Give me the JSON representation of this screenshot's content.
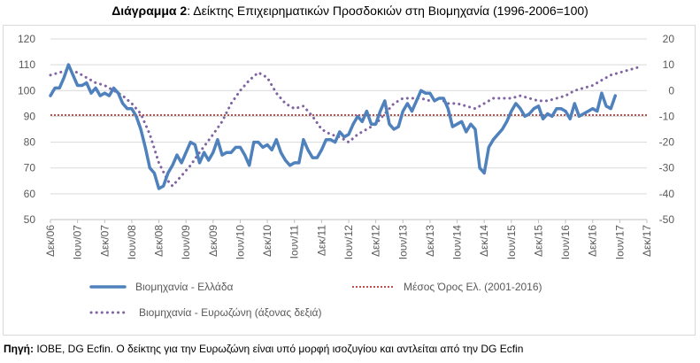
{
  "header": {
    "title_bold": "Διάγραμμα 2",
    "title_rest": ": Δείκτης Επιχειρηματικών Προσδοκιών στη Βιομηχανία (1996-2006=100)"
  },
  "footer": {
    "source_label": "Πηγή:",
    "source_text": " ΙΟΒΕ, DG Ecfin. Ο δείκτης για την Ευρωζώνη είναι υπό μορφή ισοζυγίου και αντλείται από την DG Ecfin"
  },
  "colors": {
    "greece": "#4f81bd",
    "eurozone": "#8064a2",
    "average": "#c0504d",
    "grid": "#d9d9d9"
  },
  "chart_data": {
    "type": "line",
    "title": "Δείκτης Επιχειρηματικών Προσδοκιών στη Βιομηχανία (1996-2006=100)",
    "grid": "horizontal",
    "legend_position": "bottom-left",
    "y_left": {
      "min": 50,
      "max": 120,
      "ticks": [
        "120",
        "110",
        "100",
        "90",
        "80",
        "70",
        "60",
        "50"
      ]
    },
    "y_right": {
      "min": -50,
      "max": 20,
      "ticks": [
        "20",
        "10",
        "0",
        "-10",
        "-20",
        "-30",
        "-40",
        "-50"
      ]
    },
    "x_range": [
      "2006-12",
      "2017-12"
    ],
    "x_ticks": [
      {
        "date": "2006-12",
        "label": "Δεκ/06"
      },
      {
        "date": "2007-06",
        "label": "Ιουν/07"
      },
      {
        "date": "2007-12",
        "label": "Δεκ/07"
      },
      {
        "date": "2008-06",
        "label": "Ιουν/08"
      },
      {
        "date": "2008-12",
        "label": "Δεκ/08"
      },
      {
        "date": "2009-06",
        "label": "Ιουν/09"
      },
      {
        "date": "2009-12",
        "label": "Δεκ/09"
      },
      {
        "date": "2010-06",
        "label": "Ιουν/10"
      },
      {
        "date": "2010-12",
        "label": "Δεκ/10"
      },
      {
        "date": "2011-06",
        "label": "Ιουν/11"
      },
      {
        "date": "2011-12",
        "label": "Δεκ/11"
      },
      {
        "date": "2012-06",
        "label": "Ιουν/12"
      },
      {
        "date": "2012-12",
        "label": "Δεκ/12"
      },
      {
        "date": "2013-06",
        "label": "Ιουν/13"
      },
      {
        "date": "2013-12",
        "label": "Δεκ/13"
      },
      {
        "date": "2014-06",
        "label": "Ιουν/14"
      },
      {
        "date": "2014-12",
        "label": "Δεκ/14"
      },
      {
        "date": "2015-06",
        "label": "Ιουν/15"
      },
      {
        "date": "2015-12",
        "label": "Δεκ/15"
      },
      {
        "date": "2016-06",
        "label": "Ιουν/16"
      },
      {
        "date": "2016-12",
        "label": "Δεκ/16"
      },
      {
        "date": "2017-06",
        "label": "Ιουν/17"
      },
      {
        "date": "2017-12",
        "label": "Δεκ/17"
      }
    ],
    "series": [
      {
        "name": "Βιομηχανία - Ελλάδα",
        "axis": "left",
        "style": "solid",
        "points": [
          [
            "2006-12",
            98
          ],
          [
            "2007-01",
            101
          ],
          [
            "2007-02",
            101
          ],
          [
            "2007-03",
            105
          ],
          [
            "2007-04",
            110
          ],
          [
            "2007-05",
            106
          ],
          [
            "2007-06",
            102
          ],
          [
            "2007-07",
            102
          ],
          [
            "2007-08",
            103
          ],
          [
            "2007-09",
            99
          ],
          [
            "2007-10",
            101
          ],
          [
            "2007-11",
            98
          ],
          [
            "2007-12",
            99
          ],
          [
            "2008-01",
            98
          ],
          [
            "2008-02",
            101
          ],
          [
            "2008-03",
            99
          ],
          [
            "2008-04",
            95
          ],
          [
            "2008-05",
            93
          ],
          [
            "2008-06",
            93
          ],
          [
            "2008-07",
            90
          ],
          [
            "2008-08",
            85
          ],
          [
            "2008-09",
            78
          ],
          [
            "2008-10",
            70
          ],
          [
            "2008-11",
            68
          ],
          [
            "2008-12",
            62
          ],
          [
            "2009-01",
            63
          ],
          [
            "2009-02",
            68
          ],
          [
            "2009-03",
            71
          ],
          [
            "2009-04",
            75
          ],
          [
            "2009-05",
            72
          ],
          [
            "2009-06",
            76
          ],
          [
            "2009-07",
            80
          ],
          [
            "2009-08",
            79
          ],
          [
            "2009-09",
            72
          ],
          [
            "2009-10",
            76
          ],
          [
            "2009-11",
            73
          ],
          [
            "2009-12",
            76
          ],
          [
            "2010-01",
            81
          ],
          [
            "2010-02",
            75
          ],
          [
            "2010-03",
            76
          ],
          [
            "2010-04",
            76
          ],
          [
            "2010-05",
            78
          ],
          [
            "2010-06",
            78
          ],
          [
            "2010-07",
            75
          ],
          [
            "2010-08",
            71
          ],
          [
            "2010-09",
            80
          ],
          [
            "2010-10",
            80
          ],
          [
            "2010-11",
            78
          ],
          [
            "2010-12",
            79
          ],
          [
            "2011-01",
            77
          ],
          [
            "2011-02",
            81
          ],
          [
            "2011-03",
            76
          ],
          [
            "2011-04",
            73
          ],
          [
            "2011-05",
            71
          ],
          [
            "2011-06",
            72
          ],
          [
            "2011-07",
            72
          ],
          [
            "2011-08",
            81
          ],
          [
            "2011-09",
            77
          ],
          [
            "2011-10",
            74
          ],
          [
            "2011-11",
            74
          ],
          [
            "2011-12",
            77
          ],
          [
            "2012-01",
            81
          ],
          [
            "2012-02",
            81
          ],
          [
            "2012-03",
            80
          ],
          [
            "2012-04",
            84
          ],
          [
            "2012-05",
            82
          ],
          [
            "2012-06",
            83
          ],
          [
            "2012-07",
            87
          ],
          [
            "2012-08",
            90
          ],
          [
            "2012-09",
            88
          ],
          [
            "2012-10",
            92
          ],
          [
            "2012-11",
            87
          ],
          [
            "2012-12",
            87
          ],
          [
            "2013-01",
            92
          ],
          [
            "2013-02",
            96
          ],
          [
            "2013-03",
            87
          ],
          [
            "2013-04",
            85
          ],
          [
            "2013-05",
            86
          ],
          [
            "2013-06",
            92
          ],
          [
            "2013-07",
            95
          ],
          [
            "2013-08",
            92
          ],
          [
            "2013-09",
            96
          ],
          [
            "2013-10",
            100
          ],
          [
            "2013-11",
            99
          ],
          [
            "2013-12",
            99
          ],
          [
            "2014-01",
            96
          ],
          [
            "2014-02",
            97
          ],
          [
            "2014-03",
            97
          ],
          [
            "2014-04",
            93
          ],
          [
            "2014-05",
            86
          ],
          [
            "2014-06",
            87
          ],
          [
            "2014-07",
            88
          ],
          [
            "2014-08",
            84
          ],
          [
            "2014-09",
            87
          ],
          [
            "2014-10",
            85
          ],
          [
            "2014-11",
            70
          ],
          [
            "2014-12",
            68
          ],
          [
            "2015-01",
            78
          ],
          [
            "2015-02",
            81
          ],
          [
            "2015-03",
            83
          ],
          [
            "2015-04",
            85
          ],
          [
            "2015-05",
            88
          ],
          [
            "2015-06",
            92
          ],
          [
            "2015-07",
            95
          ],
          [
            "2015-08",
            93
          ],
          [
            "2015-09",
            90
          ],
          [
            "2015-10",
            91
          ],
          [
            "2015-11",
            93
          ],
          [
            "2015-12",
            94
          ],
          [
            "2016-01",
            89
          ],
          [
            "2016-02",
            91
          ],
          [
            "2016-03",
            90
          ],
          [
            "2016-04",
            93
          ],
          [
            "2016-05",
            93
          ],
          [
            "2016-06",
            92
          ],
          [
            "2016-07",
            89
          ],
          [
            "2016-08",
            95
          ],
          [
            "2016-09",
            90
          ],
          [
            "2016-10",
            91
          ],
          [
            "2016-11",
            92
          ],
          [
            "2016-12",
            93
          ],
          [
            "2017-01",
            92
          ],
          [
            "2017-02",
            99
          ],
          [
            "2017-03",
            94
          ],
          [
            "2017-04",
            93
          ],
          [
            "2017-05",
            98
          ]
        ]
      },
      {
        "name": "Μέσος Όρος Ελ. (2001-2016)",
        "axis": "left",
        "style": "dotted",
        "points": [
          [
            "2006-12",
            90.5
          ],
          [
            "2017-12",
            90.5
          ]
        ]
      },
      {
        "name": "Βιομηχανία - Ευρωζώνη (άξονας δεξιά)",
        "axis": "right",
        "style": "dotted",
        "points": [
          [
            "2006-12",
            6
          ],
          [
            "2007-02",
            7
          ],
          [
            "2007-04",
            8
          ],
          [
            "2007-06",
            7
          ],
          [
            "2007-08",
            5
          ],
          [
            "2007-10",
            3
          ],
          [
            "2007-12",
            2
          ],
          [
            "2008-02",
            0
          ],
          [
            "2008-04",
            -2
          ],
          [
            "2008-06",
            -5
          ],
          [
            "2008-08",
            -9
          ],
          [
            "2008-10",
            -17
          ],
          [
            "2008-12",
            -28
          ],
          [
            "2009-02",
            -35
          ],
          [
            "2009-03",
            -37
          ],
          [
            "2009-05",
            -33
          ],
          [
            "2009-07",
            -29
          ],
          [
            "2009-09",
            -24
          ],
          [
            "2009-12",
            -17
          ],
          [
            "2010-02",
            -12
          ],
          [
            "2010-04",
            -5
          ],
          [
            "2010-06",
            0
          ],
          [
            "2010-08",
            4
          ],
          [
            "2010-10",
            7
          ],
          [
            "2010-12",
            5
          ],
          [
            "2011-02",
            -1
          ],
          [
            "2011-04",
            -5
          ],
          [
            "2011-06",
            -7
          ],
          [
            "2011-08",
            -6
          ],
          [
            "2011-10",
            -10
          ],
          [
            "2011-12",
            -15
          ],
          [
            "2012-02",
            -17
          ],
          [
            "2012-04",
            -18
          ],
          [
            "2012-06",
            -20
          ],
          [
            "2012-08",
            -17
          ],
          [
            "2012-10",
            -15
          ],
          [
            "2012-12",
            -13
          ],
          [
            "2013-02",
            -9
          ],
          [
            "2013-04",
            -5
          ],
          [
            "2013-06",
            -3
          ],
          [
            "2013-08",
            -3
          ],
          [
            "2013-10",
            -3
          ],
          [
            "2013-12",
            -4
          ],
          [
            "2014-02",
            -3
          ],
          [
            "2014-04",
            -5
          ],
          [
            "2014-06",
            -5
          ],
          [
            "2014-08",
            -6
          ],
          [
            "2014-10",
            -7
          ],
          [
            "2014-12",
            -5
          ],
          [
            "2015-02",
            -3
          ],
          [
            "2015-04",
            -3
          ],
          [
            "2015-06",
            -3
          ],
          [
            "2015-08",
            -2
          ],
          [
            "2015-10",
            -3
          ],
          [
            "2015-12",
            -4
          ],
          [
            "2016-02",
            -4
          ],
          [
            "2016-04",
            -3
          ],
          [
            "2016-06",
            -2
          ],
          [
            "2016-08",
            0
          ],
          [
            "2016-10",
            1
          ],
          [
            "2016-12",
            2
          ],
          [
            "2017-02",
            4
          ],
          [
            "2017-04",
            6
          ],
          [
            "2017-06",
            7
          ],
          [
            "2017-08",
            8
          ],
          [
            "2017-10",
            9
          ]
        ]
      }
    ]
  }
}
